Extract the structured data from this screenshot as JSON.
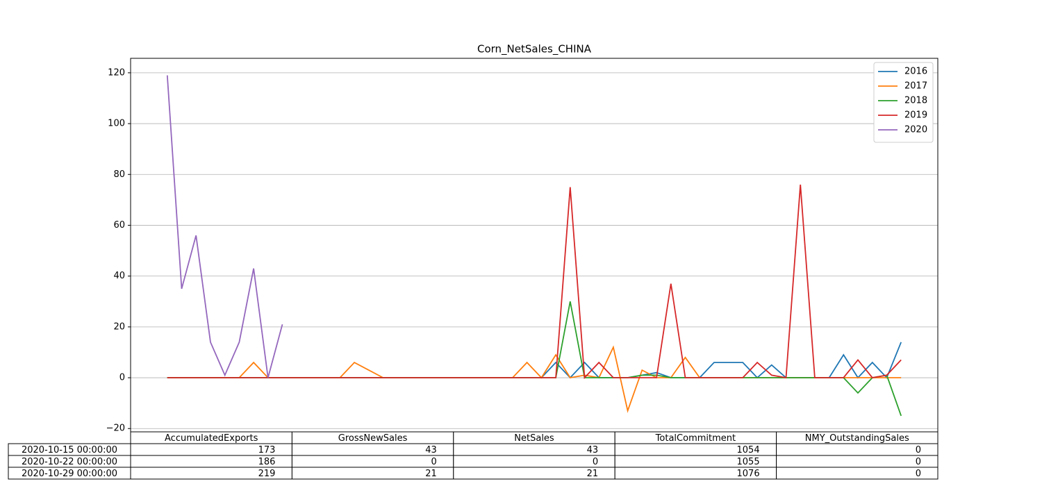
{
  "chart_data": {
    "type": "line",
    "title": "Corn_NetSales_CHINA",
    "ylim": [
      -21.3,
      125.7
    ],
    "yticks": [
      {
        "value": -20,
        "label": "−20"
      },
      0,
      20,
      40,
      60,
      80,
      100,
      120
    ],
    "grid": true,
    "legend": "upper right",
    "series": [
      {
        "name": "2016",
        "color": "#1f77b4",
        "values": [
          0,
          0,
          0,
          0,
          0,
          0,
          0,
          0,
          0,
          0,
          0,
          0,
          0,
          0,
          0,
          0,
          0,
          0,
          0,
          0,
          0,
          0,
          0,
          0,
          0,
          0,
          0,
          6,
          0,
          6,
          0,
          0,
          0,
          1,
          2,
          0,
          0,
          0,
          6,
          6,
          6,
          0,
          5,
          0,
          0,
          0,
          0,
          9,
          0,
          6,
          0,
          14
        ]
      },
      {
        "name": "2017",
        "color": "#ff7f0e",
        "values": [
          0,
          0,
          0,
          0,
          0,
          0,
          6,
          0,
          0,
          0,
          0,
          0,
          0,
          6,
          3,
          0,
          0,
          0,
          0,
          0,
          0,
          0,
          0,
          0,
          0,
          6,
          0,
          9,
          0,
          1,
          0,
          12,
          -13,
          3,
          0,
          0,
          8,
          0,
          0,
          0,
          0,
          0,
          0,
          0,
          0,
          0,
          0,
          0,
          0,
          0,
          0,
          0
        ]
      },
      {
        "name": "2018",
        "color": "#2ca02c",
        "values": [
          0,
          0,
          0,
          0,
          0,
          0,
          0,
          0,
          0,
          0,
          0,
          0,
          0,
          0,
          0,
          0,
          0,
          0,
          0,
          0,
          0,
          0,
          0,
          0,
          0,
          0,
          0,
          0,
          30,
          0,
          0,
          0,
          0,
          1,
          1,
          0,
          0,
          0,
          0,
          0,
          0,
          0,
          0,
          0,
          0,
          0,
          0,
          0,
          -6,
          0,
          1,
          -15
        ]
      },
      {
        "name": "2019",
        "color": "#d62728",
        "values": [
          0,
          0,
          0,
          0,
          0,
          0,
          0,
          0,
          0,
          0,
          0,
          0,
          0,
          0,
          0,
          0,
          0,
          0,
          0,
          0,
          0,
          0,
          0,
          0,
          0,
          0,
          0,
          0,
          75,
          0,
          6,
          0,
          0,
          0,
          0,
          37,
          0,
          0,
          0,
          0,
          0,
          6,
          1,
          0,
          76,
          0,
          0,
          0,
          7,
          0,
          1,
          7
        ]
      },
      {
        "name": "2020",
        "color": "#9467bd",
        "values": [
          119,
          35,
          56,
          14,
          1,
          14,
          43,
          0,
          21,
          null,
          null,
          null,
          null,
          null,
          null,
          null,
          null,
          null,
          null,
          null,
          null,
          null,
          null,
          null,
          null,
          null,
          null,
          null,
          null,
          null,
          null,
          null,
          null,
          null,
          null,
          null,
          null,
          null,
          null,
          null,
          null,
          null,
          null,
          null,
          null,
          null,
          null,
          null,
          null,
          null,
          null,
          null
        ]
      }
    ],
    "table": {
      "columns": [
        "AccumulatedExports",
        "GrossNewSales",
        "NetSales",
        "TotalCommitment",
        "NMY_OutstandingSales"
      ],
      "row_labels": [
        "2020-10-15 00:00:00",
        "2020-10-22 00:00:00",
        "2020-10-29 00:00:00"
      ],
      "rows": [
        [
          173,
          43,
          43,
          1054,
          0
        ],
        [
          186,
          0,
          0,
          1055,
          0
        ],
        [
          219,
          21,
          21,
          1076,
          0
        ]
      ]
    }
  }
}
